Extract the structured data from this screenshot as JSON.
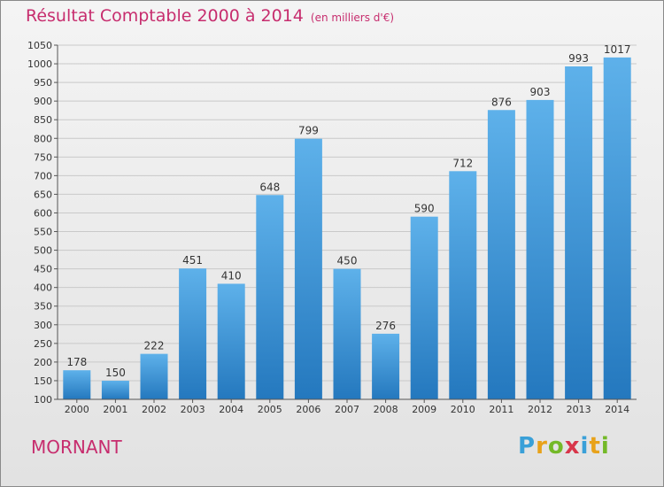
{
  "chart_data": {
    "type": "bar",
    "title": "Résultat Comptable 2000 à 2014",
    "subtitle": "(en milliers d'€)",
    "categories": [
      "2000",
      "2001",
      "2002",
      "2003",
      "2004",
      "2005",
      "2006",
      "2007",
      "2008",
      "2009",
      "2010",
      "2011",
      "2012",
      "2013",
      "2014"
    ],
    "values": [
      178,
      150,
      222,
      451,
      410,
      648,
      799,
      450,
      276,
      590,
      712,
      876,
      903,
      993,
      1017
    ],
    "ylim": [
      100,
      1050
    ],
    "yticks": [
      100,
      150,
      200,
      250,
      300,
      350,
      400,
      450,
      500,
      550,
      600,
      650,
      700,
      750,
      800,
      850,
      900,
      950,
      1000,
      1050
    ],
    "grid": true,
    "xlabel": "",
    "ylabel": "",
    "colors": {
      "bar_top": "#5eb1ea",
      "bar_bottom": "#2478be",
      "title": "#c72d6e"
    }
  },
  "footer": {
    "city": "MORNANT",
    "logo": "Proxiti"
  }
}
